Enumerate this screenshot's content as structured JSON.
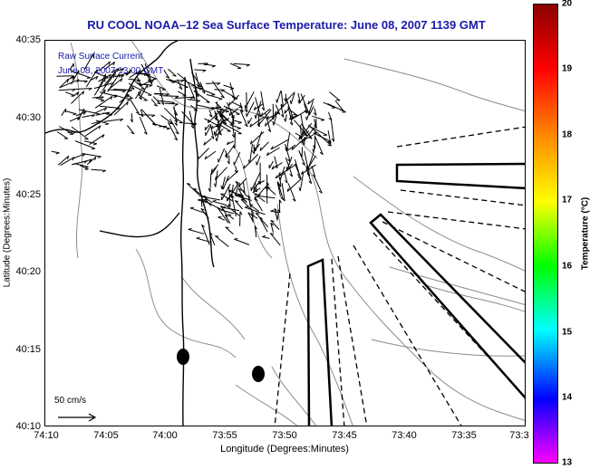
{
  "title": "RU COOL   NOAA–12  Sea Surface Temperature:  June 08, 2007 1139 GMT",
  "legend": {
    "line1": "Raw Surface Current",
    "line2": "June 08, 2007 13:00 GMT"
  },
  "scale_label": "50 cm/s",
  "colorbar": {
    "label": "Temperature (°C)",
    "ticks": [
      "20",
      "19",
      "18",
      "17",
      "16",
      "15",
      "14",
      "13"
    ],
    "colors": [
      "#8b0000",
      "#ff0000",
      "#ff8c00",
      "#ffff00",
      "#00ff00",
      "#00ffff",
      "#0000ff",
      "#ff00ff"
    ]
  },
  "chart_data": {
    "type": "map",
    "title": "RU COOL   NOAA–12  Sea Surface Temperature:  June 08, 2007 1139 GMT",
    "xlabel": "Longitude (Degrees:Minutes)",
    "ylabel": "Latitude (Degrees:Minutes)",
    "x_ticks": [
      "74:10",
      "74:05",
      "74:00",
      "73:55",
      "73:50",
      "73:45",
      "73:40",
      "73:35",
      "73:3"
    ],
    "y_ticks": [
      "40:35",
      "40:30",
      "40:25",
      "40:20",
      "40:15",
      "40:10"
    ],
    "xlim": [
      -74.1667,
      -73.5
    ],
    "ylim": [
      40.1667,
      40.5833
    ]
  }
}
